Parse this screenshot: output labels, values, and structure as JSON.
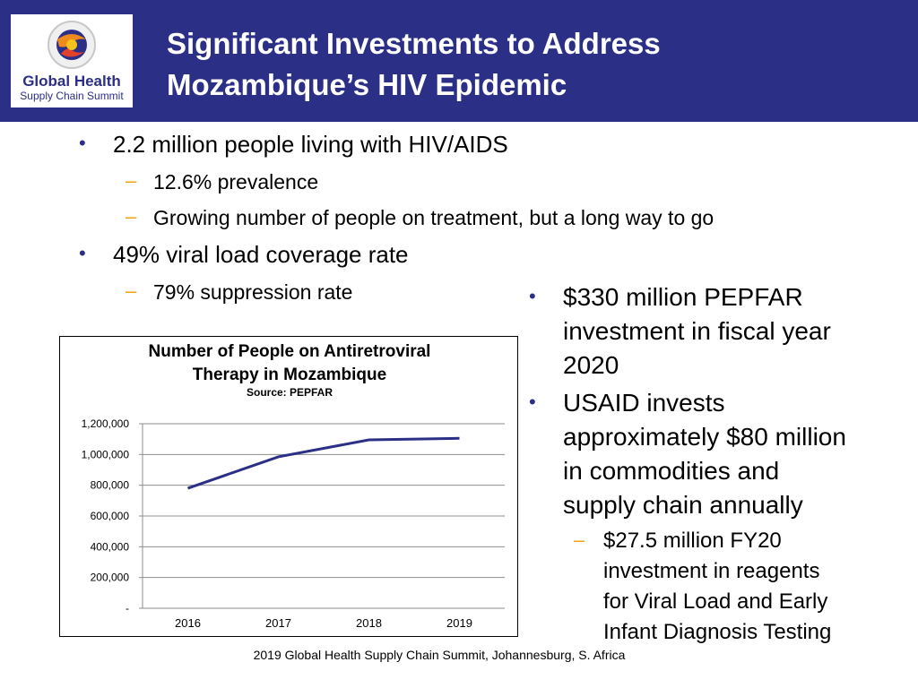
{
  "header": {
    "title": "Significant Investments to Address\nMozambique’s HIV Epidemic",
    "logo": {
      "line1": "Global Health",
      "line2": "Supply Chain Summit",
      "icon": "globe-logo-icon"
    },
    "background_color": "#2b2f86"
  },
  "bullets": [
    {
      "text": "2.2 million people living with HIV/AIDS",
      "subs": [
        "12.6% prevalence",
        "Growing number of people on treatment, but a long way to go"
      ]
    },
    {
      "text": "49% viral load coverage rate",
      "subs": [
        "79% suppression rate"
      ]
    }
  ],
  "right_bullets": [
    {
      "text": "$330 million PEPFAR\ninvestment in fiscal year\n2020"
    },
    {
      "text": "USAID invests\napproximately $80 million\nin commodities and\nsupply chain annually",
      "subs": [
        "$27.5 million FY20\ninvestment in reagents\nfor Viral Load and Early\nInfant Diagnosis Testing"
      ]
    }
  ],
  "chart_data": {
    "type": "line",
    "title": "Number of People on Antiretroviral\nTherapy in Mozambique",
    "subtitle": "Source: PEPFAR",
    "categories": [
      "2016",
      "2017",
      "2018",
      "2019"
    ],
    "series": [
      {
        "values": [
          780000,
          985000,
          1095000,
          1105000
        ],
        "color": "#2b2f86"
      }
    ],
    "ylim": [
      0,
      1200000
    ],
    "yticks": [
      0,
      200000,
      400000,
      600000,
      800000,
      1000000,
      1200000
    ],
    "ytick_labels": [
      "-",
      "200,000",
      "400,000",
      "600,000",
      "800,000",
      "1,000,000",
      "1,200,000"
    ],
    "grid": true,
    "xlabel": "",
    "ylabel": ""
  },
  "footer": {
    "text": "2019 Global Health Supply Chain Summit, Johannesburg, S. Africa"
  },
  "colors": {
    "bullet": "#2b2f86",
    "dash": "#f2a313",
    "line": "#2b2f86"
  }
}
